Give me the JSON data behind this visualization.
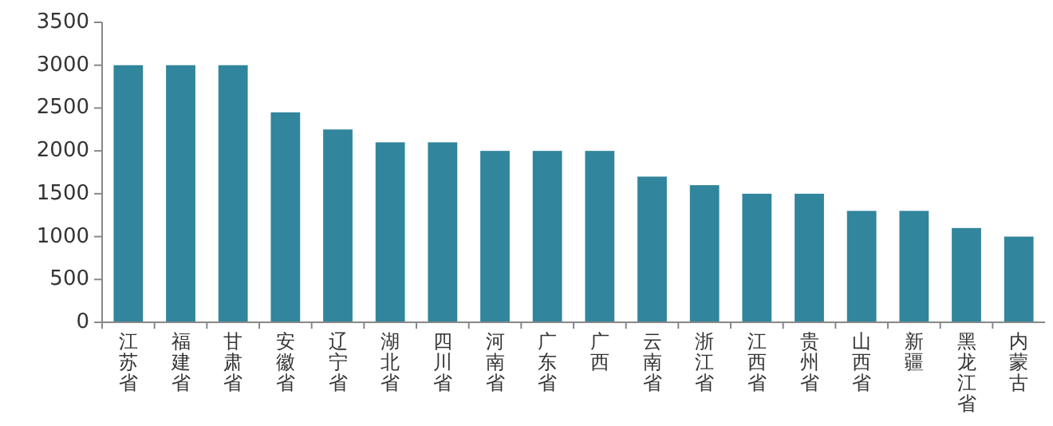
{
  "chart_data": {
    "type": "bar",
    "categories": [
      "江苏省",
      "福建省",
      "甘肃省",
      "安徽省",
      "辽宁省",
      "湖北省",
      "四川省",
      "河南省",
      "广东省",
      "广西",
      "云南省",
      "浙江省",
      "江西省",
      "贵州省",
      "山西省",
      "新疆",
      "黑龙江省",
      "内蒙古"
    ],
    "values": [
      3000,
      3000,
      3000,
      2450,
      2250,
      2100,
      2100,
      2000,
      2000,
      2000,
      1700,
      1600,
      1500,
      1500,
      1300,
      1300,
      1100,
      1000
    ],
    "color": "#31859c",
    "ylim": [
      0,
      3500
    ],
    "yticks": [
      0,
      500,
      1000,
      1500,
      2000,
      2500,
      3000,
      3500
    ],
    "grid": false
  }
}
